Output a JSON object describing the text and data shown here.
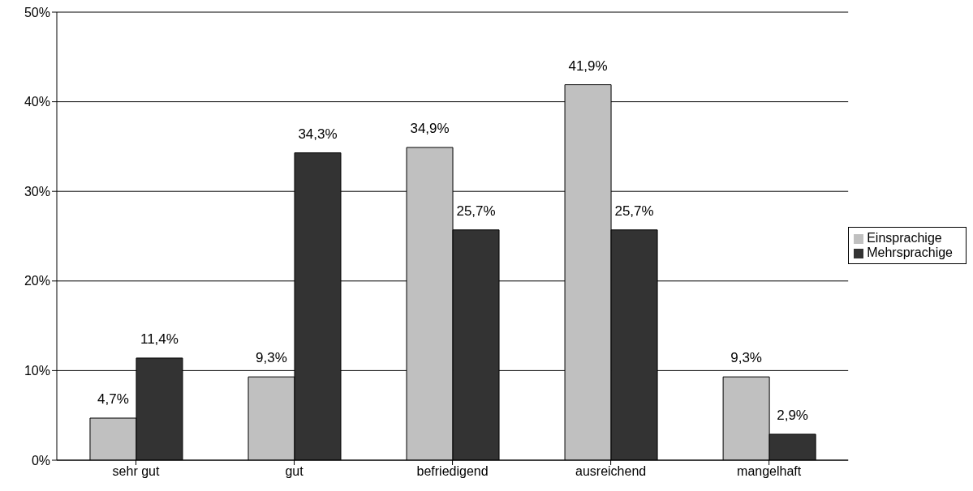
{
  "chart_data": {
    "type": "bar",
    "categories": [
      "sehr gut",
      "gut",
      "befriedigend",
      "ausreichend",
      "mangelhaft"
    ],
    "series": [
      {
        "name": "Einsprachige",
        "color": "#c0c0c0",
        "values": [
          4.7,
          9.3,
          34.9,
          41.9,
          9.3
        ],
        "value_labels": [
          "4,7%",
          "9,3%",
          "34,9%",
          "41,9%",
          "9,3%"
        ]
      },
      {
        "name": "Mehrsprachige",
        "color": "#333333",
        "values": [
          11.4,
          34.3,
          25.7,
          25.7,
          2.9
        ],
        "value_labels": [
          "11,4%",
          "34,3%",
          "25,7%",
          "25,7%",
          "2,9%"
        ]
      }
    ],
    "ylim": [
      0,
      50
    ],
    "yticks": [
      {
        "value": 0,
        "label": "0%"
      },
      {
        "value": 10,
        "label": "10%"
      },
      {
        "value": 20,
        "label": "20%"
      },
      {
        "value": 30,
        "label": "30%"
      },
      {
        "value": 40,
        "label": "40%"
      },
      {
        "value": 50,
        "label": "50%"
      }
    ],
    "grid": "y",
    "legend": "right"
  }
}
